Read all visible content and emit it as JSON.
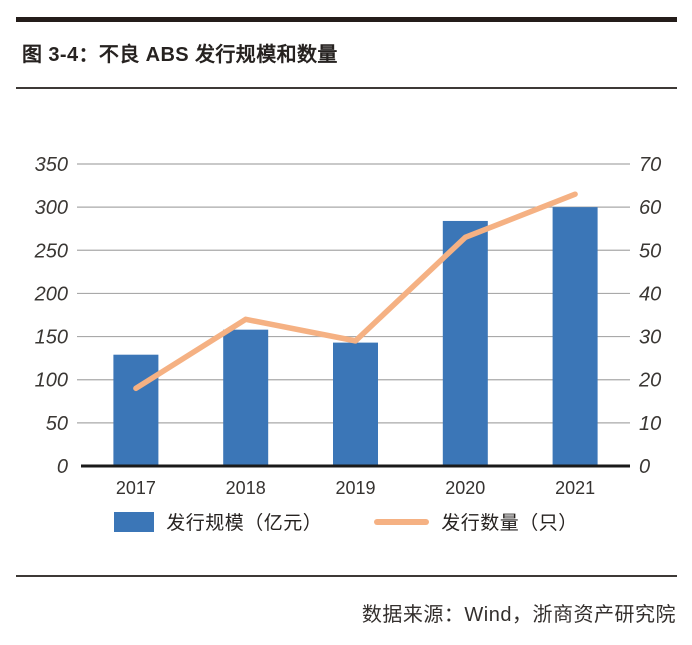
{
  "page": {
    "title": "图 3-4：不良 ABS 发行规模和数量",
    "source_note": "数据来源：Wind，浙商资产研究院"
  },
  "chart_data": {
    "type": "bar",
    "subtype": "combo-bar-line-dual-axis",
    "title": "不良 ABS 发行规模和数量",
    "categories": [
      "2017",
      "2018",
      "2019",
      "2020",
      "2021"
    ],
    "series": [
      {
        "name": "发行规模（亿元）",
        "type": "bar",
        "axis": "left",
        "values": [
          129,
          158,
          143,
          284,
          300
        ],
        "color": "#3B76B7"
      },
      {
        "name": "发行数量（只）",
        "type": "line",
        "axis": "right",
        "values": [
          18,
          34,
          29,
          53,
          63
        ],
        "color": "#F5B183"
      }
    ],
    "left_axis": {
      "min": 0,
      "max": 350,
      "step": 50,
      "ticks": [
        0,
        50,
        100,
        150,
        200,
        250,
        300,
        350
      ]
    },
    "right_axis": {
      "min": 0,
      "max": 70,
      "step": 10,
      "ticks": [
        0,
        10,
        20,
        30,
        40,
        50,
        60,
        70
      ]
    },
    "grid": true,
    "legend_position": "bottom",
    "colors": {
      "grid": "#A9A9A9",
      "axis": "#1A1A1A",
      "bar": "#3B76B7",
      "line": "#F5B183"
    }
  }
}
